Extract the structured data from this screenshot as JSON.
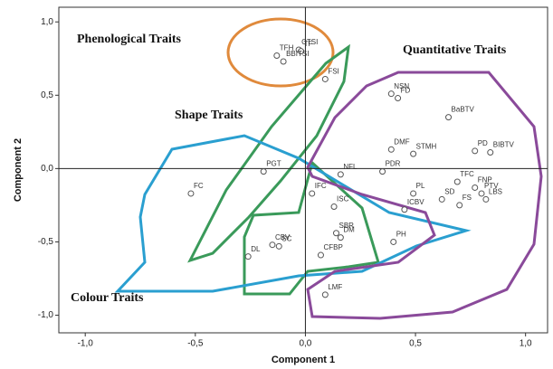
{
  "chart_data": {
    "type": "scatter",
    "xlabel": "Component 1",
    "ylabel": "Component 2",
    "xlim": [
      -1.12,
      1.1
    ],
    "ylim": [
      -1.12,
      1.1
    ],
    "xticks": [
      {
        "value": -1.0,
        "label": "-1,0"
      },
      {
        "value": -0.5,
        "label": "-0,5"
      },
      {
        "value": 0.0,
        "label": "0,0"
      },
      {
        "value": 0.5,
        "label": "0,5"
      },
      {
        "value": 1.0,
        "label": "1,0"
      }
    ],
    "yticks": [
      {
        "value": -1.0,
        "label": "-1,0"
      },
      {
        "value": -0.5,
        "label": "-0,5"
      },
      {
        "value": 0.0,
        "label": "0,0"
      },
      {
        "value": 0.5,
        "label": "0,5"
      },
      {
        "value": 1.0,
        "label": "1,0"
      }
    ],
    "annotations": [
      "Phenological Traits",
      "Quantitative Traits",
      "Shape Traits",
      "Colour Traits"
    ],
    "labels": [
      "TFH",
      "CTSI",
      "TF",
      "BBITSI",
      "FSI",
      "NSN",
      "FD",
      "BaBTV",
      "DMF",
      "STMH",
      "BIBTV",
      "PD",
      "PGT",
      "NFL",
      "PDR",
      "TFC",
      "FNP",
      "PTV",
      "LBS",
      "FS",
      "SD",
      "PL",
      "FC",
      "IFC",
      "ISC",
      "ICBV",
      "SBR",
      "DM",
      "CFBP",
      "PH",
      "CBV",
      "SC",
      "DL",
      "LMF"
    ],
    "x": [
      -0.13,
      -0.03,
      -0.02,
      -0.1,
      0.09,
      0.39,
      0.42,
      0.65,
      0.39,
      0.49,
      0.84,
      0.77,
      -0.19,
      0.16,
      0.35,
      0.69,
      0.77,
      0.8,
      0.82,
      0.7,
      0.62,
      0.49,
      -0.52,
      0.03,
      0.13,
      0.45,
      0.14,
      0.16,
      0.07,
      0.4,
      -0.15,
      -0.12,
      -0.26,
      0.09
    ],
    "y": [
      0.77,
      0.81,
      0.8,
      0.73,
      0.61,
      0.51,
      0.48,
      0.35,
      0.13,
      0.1,
      0.11,
      0.12,
      -0.02,
      -0.04,
      -0.02,
      -0.09,
      -0.13,
      -0.17,
      -0.21,
      -0.25,
      -0.21,
      -0.17,
      -0.17,
      -0.17,
      -0.26,
      -0.28,
      -0.44,
      -0.47,
      -0.59,
      -0.5,
      -0.52,
      -0.53,
      -0.6,
      -0.86
    ]
  }
}
